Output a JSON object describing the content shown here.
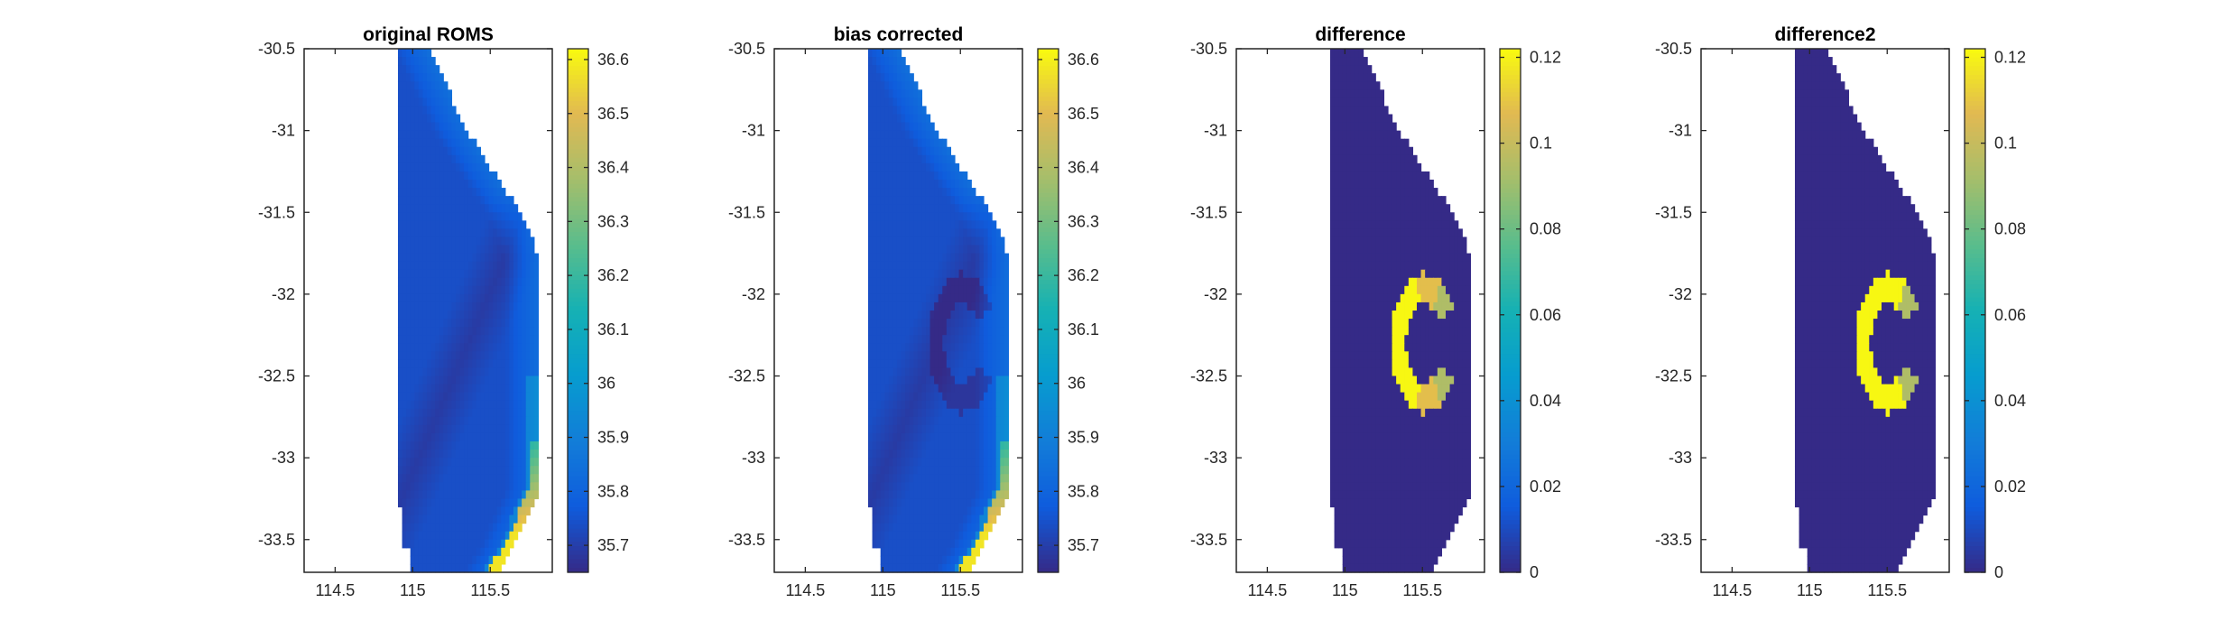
{
  "chart_data": [
    {
      "type": "heatmap",
      "title": "original ROMS",
      "variant": "original",
      "xlim": [
        114.3,
        115.9
      ],
      "ylim": [
        -33.7,
        -30.5
      ],
      "xticks": [
        114.5,
        115,
        115.5
      ],
      "xtick_labels": [
        "114.5",
        "115",
        "115.5"
      ],
      "yticks": [
        -30.5,
        -31,
        -31.5,
        -32,
        -32.5,
        -33,
        -33.5
      ],
      "ytick_labels": [
        "-30.5",
        "-31",
        "-31.5",
        "-32",
        "-32.5",
        "-33",
        "-33.5"
      ],
      "clim": [
        35.65,
        36.62
      ],
      "cbar_ticks": [
        35.7,
        35.8,
        35.9,
        36,
        36.1,
        36.2,
        36.3,
        36.4,
        36.5,
        36.6
      ],
      "cbar_tick_labels": [
        "35.7",
        "35.8",
        "35.9",
        "36",
        "36.1",
        "36.2",
        "36.3",
        "36.4",
        "36.5",
        "36.6"
      ],
      "colormap": "parula"
    },
    {
      "type": "heatmap",
      "title": "bias corrected",
      "variant": "corrected",
      "xlim": [
        114.3,
        115.9
      ],
      "ylim": [
        -33.7,
        -30.5
      ],
      "xticks": [
        114.5,
        115,
        115.5
      ],
      "xtick_labels": [
        "114.5",
        "115",
        "115.5"
      ],
      "yticks": [
        -30.5,
        -31,
        -31.5,
        -32,
        -32.5,
        -33,
        -33.5
      ],
      "ytick_labels": [
        "-30.5",
        "-31",
        "-31.5",
        "-32",
        "-32.5",
        "-33",
        "-33.5"
      ],
      "clim": [
        35.65,
        36.62
      ],
      "cbar_ticks": [
        35.7,
        35.8,
        35.9,
        36,
        36.1,
        36.2,
        36.3,
        36.4,
        36.5,
        36.6
      ],
      "cbar_tick_labels": [
        "35.7",
        "35.8",
        "35.9",
        "36",
        "36.1",
        "36.2",
        "36.3",
        "36.4",
        "36.5",
        "36.6"
      ],
      "colormap": "parula"
    },
    {
      "type": "heatmap",
      "title": "difference",
      "variant": "difference",
      "xlim": [
        114.3,
        115.9
      ],
      "ylim": [
        -33.7,
        -30.5
      ],
      "xticks": [
        114.5,
        115,
        115.5
      ],
      "xtick_labels": [
        "114.5",
        "115",
        "115.5"
      ],
      "yticks": [
        -30.5,
        -31,
        -31.5,
        -32,
        -32.5,
        -33,
        -33.5
      ],
      "ytick_labels": [
        "-30.5",
        "-31",
        "-31.5",
        "-32",
        "-32.5",
        "-33",
        "-33.5"
      ],
      "clim": [
        0,
        0.122
      ],
      "cbar_ticks": [
        0,
        0.02,
        0.04,
        0.06,
        0.08,
        0.1,
        0.12
      ],
      "cbar_tick_labels": [
        "0",
        "0.02",
        "0.04",
        "0.06",
        "0.08",
        "0.1",
        "0.12"
      ],
      "colormap": "parula"
    },
    {
      "type": "heatmap",
      "title": "difference2",
      "variant": "difference2",
      "xlim": [
        114.3,
        115.9
      ],
      "ylim": [
        -33.7,
        -30.5
      ],
      "xticks": [
        114.5,
        115,
        115.5
      ],
      "xtick_labels": [
        "114.5",
        "115",
        "115.5"
      ],
      "yticks": [
        -30.5,
        -31,
        -31.5,
        -32,
        -32.5,
        -33,
        -33.5
      ],
      "ytick_labels": [
        "-30.5",
        "-31",
        "-31.5",
        "-32",
        "-32.5",
        "-33",
        "-33.5"
      ],
      "clim": [
        0,
        0.122
      ],
      "cbar_ticks": [
        0,
        0.02,
        0.04,
        0.06,
        0.08,
        0.1,
        0.12
      ],
      "cbar_tick_labels": [
        "0",
        "0.02",
        "0.04",
        "0.06",
        "0.08",
        "0.1",
        "0.12"
      ],
      "colormap": "parula"
    }
  ]
}
